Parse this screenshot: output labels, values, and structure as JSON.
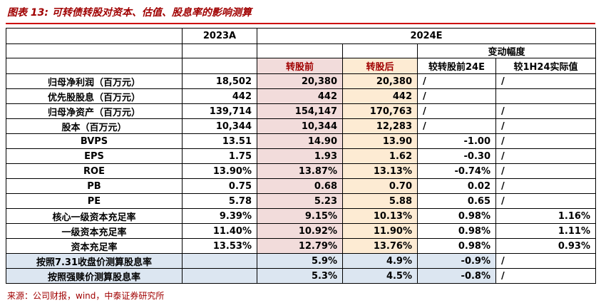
{
  "title": "图表 13: 可转债转股对资本、估值、股息率的影响测算",
  "source": "来源：公司财报，wind，中泰证券研究所",
  "colors": {
    "accent_red": "#a00000",
    "rule_red": "#cc0000",
    "pre_column_bg": "#f2dcdb",
    "post_column_bg": "#fdebd3",
    "highlight_blue_bg": "#dce6f1"
  },
  "table": {
    "col_headers": {
      "y2023": "2023A",
      "y2024": "2024E",
      "change": "变动幅度",
      "pre": "转股前",
      "post": "转股后",
      "vs_pre": "较转股前24E",
      "vs_1h24": "较1H24实际值"
    },
    "rows": [
      {
        "label": "归母净利润（百万元）",
        "a2023": "18,502",
        "pre": "20,380",
        "post": "20,380",
        "vs_pre": "/",
        "vs_1h24": "/"
      },
      {
        "label": "优先股股息（百万元）",
        "a2023": "442",
        "pre": "442",
        "post": "442",
        "vs_pre": "/",
        "vs_1h24": ""
      },
      {
        "label": "归母净资产（百万元）",
        "a2023": "139,714",
        "pre": "154,147",
        "post": "170,763",
        "vs_pre": "/",
        "vs_1h24": "/"
      },
      {
        "label": "股本（百万元）",
        "a2023": "10,344",
        "pre": "10,344",
        "post": "12,283",
        "vs_pre": "/",
        "vs_1h24": "/"
      },
      {
        "label": "BVPS",
        "a2023": "13.51",
        "pre": "14.90",
        "post": "13.90",
        "vs_pre": "-1.00",
        "vs_1h24": "/"
      },
      {
        "label": "EPS",
        "a2023": "1.75",
        "pre": "1.93",
        "post": "1.62",
        "vs_pre": "-0.30",
        "vs_1h24": "/"
      },
      {
        "label": "ROE",
        "a2023": "13.90%",
        "pre": "13.87%",
        "post": "13.13%",
        "vs_pre": "-0.74%",
        "vs_1h24": "/"
      },
      {
        "label": "PB",
        "a2023": "0.75",
        "pre": "0.68",
        "post": "0.70",
        "vs_pre": "0.02",
        "vs_1h24": "/"
      },
      {
        "label": "PE",
        "a2023": "5.78",
        "pre": "5.23",
        "post": "5.88",
        "vs_pre": "0.65",
        "vs_1h24": "/"
      },
      {
        "label": "核心一级资本充足率",
        "a2023": "9.39%",
        "pre": "9.15%",
        "post": "10.13%",
        "vs_pre": "0.98%",
        "vs_1h24": "1.16%"
      },
      {
        "label": "一级资本充足率",
        "a2023": "11.40%",
        "pre": "10.92%",
        "post": "11.90%",
        "vs_pre": "0.98%",
        "vs_1h24": "1.11%"
      },
      {
        "label": "资本充足率",
        "a2023": "13.53%",
        "pre": "12.79%",
        "post": "13.76%",
        "vs_pre": "0.98%",
        "vs_1h24": "0.93%"
      },
      {
        "label": "按照7.31收盘价测算股息率",
        "a2023": "",
        "pre": "5.9%",
        "post": "4.9%",
        "vs_pre": "-0.9%",
        "vs_1h24": "/",
        "highlight": true
      },
      {
        "label": "按照强赎价测算股息率",
        "a2023": "",
        "pre": "5.3%",
        "post": "4.5%",
        "vs_pre": "-0.8%",
        "vs_1h24": "/",
        "highlight": true
      }
    ]
  }
}
